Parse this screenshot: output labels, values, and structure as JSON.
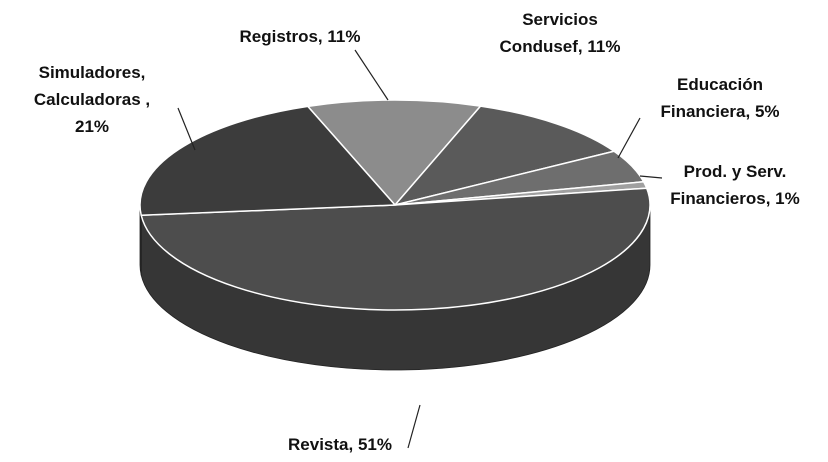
{
  "chart_data": {
    "type": "pie",
    "values": [
      11,
      11,
      5,
      1,
      51,
      21
    ],
    "value_labels": [
      [
        "Registros, 11%"
      ],
      [
        "Servicios",
        "Condusef, 11%"
      ],
      [
        "Educación",
        "Financiera, 5%"
      ],
      [
        "Prod. y Serv.",
        "Financieros, 1%"
      ],
      [
        "Revista, 51%"
      ],
      [
        "Simuladores,",
        "Calculadoras ,",
        "21%"
      ]
    ],
    "colors": [
      "#8c8c8c",
      "#5a5a5a",
      "#6e6e6e",
      "#a0a0a0",
      "#4d4d4d",
      "#3c3c3c"
    ]
  }
}
